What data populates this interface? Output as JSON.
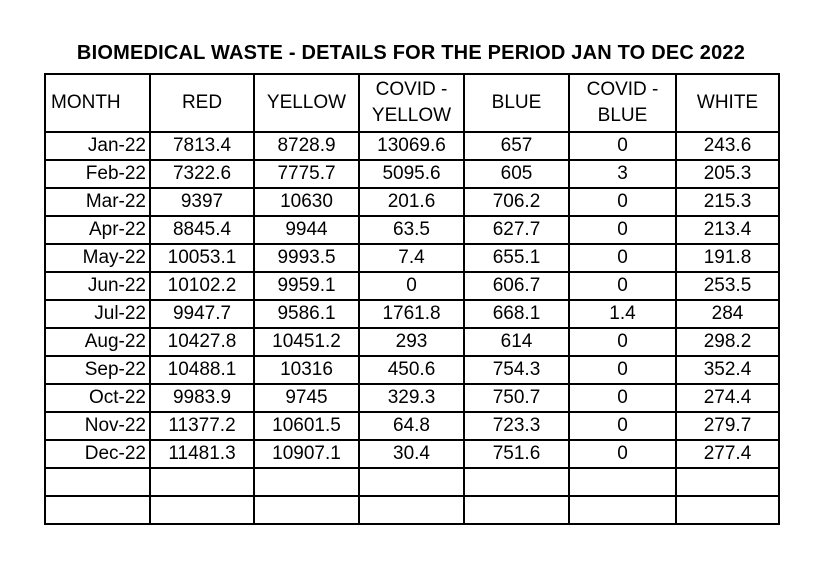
{
  "title": "BIOMEDICAL WASTE - DETAILS FOR THE PERIOD JAN TO DEC 2022",
  "colors": {
    "background": "#ffffff",
    "border": "#000000",
    "text": "#000000"
  },
  "table": {
    "columns": [
      {
        "id": "month",
        "label": "MONTH"
      },
      {
        "id": "red",
        "label": "RED"
      },
      {
        "id": "yellow",
        "label": "YELLOW"
      },
      {
        "id": "covid-yellow",
        "label": "COVID -\nYELLOW"
      },
      {
        "id": "blue",
        "label": "BLUE"
      },
      {
        "id": "covid-blue",
        "label": "COVID -\nBLUE"
      },
      {
        "id": "white",
        "label": "WHITE"
      }
    ],
    "rows": [
      [
        "Jan-22",
        "7813.4",
        "8728.9",
        "13069.6",
        "657",
        "0",
        "243.6"
      ],
      [
        "Feb-22",
        "7322.6",
        "7775.7",
        "5095.6",
        "605",
        "3",
        "205.3"
      ],
      [
        "Mar-22",
        "9397",
        "10630",
        "201.6",
        "706.2",
        "0",
        "215.3"
      ],
      [
        "Apr-22",
        "8845.4",
        "9944",
        "63.5",
        "627.7",
        "0",
        "213.4"
      ],
      [
        "May-22",
        "10053.1",
        "9993.5",
        "7.4",
        "655.1",
        "0",
        "191.8"
      ],
      [
        "Jun-22",
        "10102.2",
        "9959.1",
        "0",
        "606.7",
        "0",
        "253.5"
      ],
      [
        "Jul-22",
        "9947.7",
        "9586.1",
        "1761.8",
        "668.1",
        "1.4",
        "284"
      ],
      [
        "Aug-22",
        "10427.8",
        "10451.2",
        "293",
        "614",
        "0",
        "298.2"
      ],
      [
        "Sep-22",
        "10488.1",
        "10316",
        "450.6",
        "754.3",
        "0",
        "352.4"
      ],
      [
        "Oct-22",
        "9983.9",
        "9745",
        "329.3",
        "750.7",
        "0",
        "274.4"
      ],
      [
        "Nov-22",
        "11377.2",
        "10601.5",
        "64.8",
        "723.3",
        "0",
        "279.7"
      ],
      [
        "Dec-22",
        "11481.3",
        "10907.1",
        "30.4",
        "751.6",
        "0",
        "277.4"
      ]
    ],
    "empty_row_count": 2
  }
}
